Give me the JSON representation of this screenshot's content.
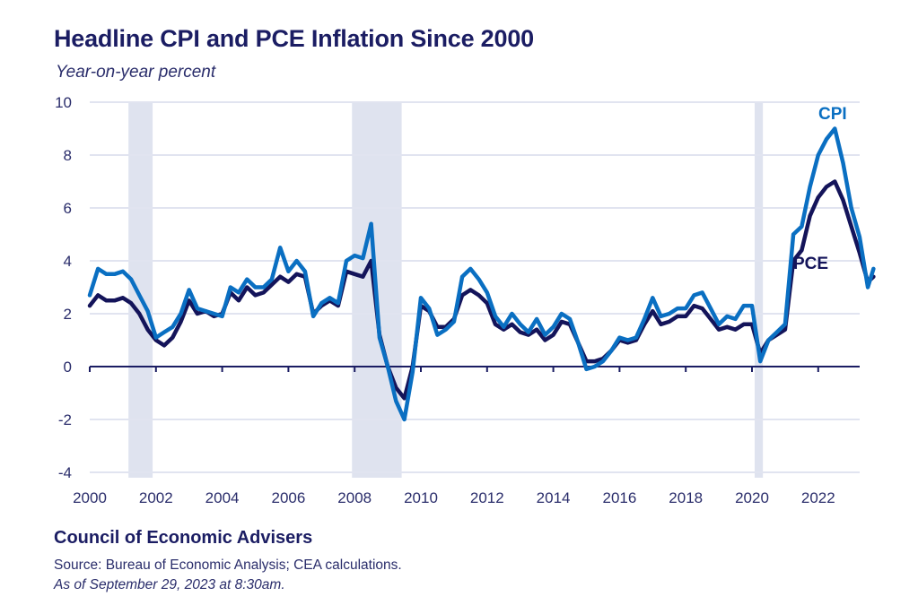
{
  "header": {
    "title": "Headline CPI and PCE Inflation Since 2000",
    "subtitle": "Year-on-year percent"
  },
  "footer": {
    "organization": "Council of Economic Advisers",
    "source": "Source: Bureau of Economic Analysis; CEA calculations.",
    "as_of": "As of September 29, 2023 at 8:30am."
  },
  "colors": {
    "cpi": "#0a6fc2",
    "pce": "#14145a",
    "recession": "#dfe3ef",
    "grid": "#e1e4f0",
    "axis": "#1b1d63",
    "tick_text": "#2a2d6b"
  },
  "chart_data": {
    "type": "line",
    "title": "Headline CPI and PCE Inflation Since 2000",
    "subtitle": "Year-on-year percent",
    "xlabel": "",
    "ylabel": "Year-on-year percent",
    "xlim": [
      2000,
      2023.75
    ],
    "ylim": [
      -4,
      10
    ],
    "yticks": [
      -4,
      -2,
      0,
      2,
      4,
      6,
      8,
      10
    ],
    "xticks": [
      2000,
      2002,
      2004,
      2006,
      2008,
      2010,
      2012,
      2014,
      2016,
      2018,
      2020,
      2022
    ],
    "grid": true,
    "legend": "inline labels (CPI top-right above peak, PCE right below)",
    "recessions": [
      {
        "start": 2001.17,
        "end": 2001.9
      },
      {
        "start": 2007.92,
        "end": 2009.42
      },
      {
        "start": 2020.08,
        "end": 2020.33
      }
    ],
    "x": [
      2000.0,
      2000.25,
      2000.5,
      2000.75,
      2001.0,
      2001.25,
      2001.5,
      2001.75,
      2002.0,
      2002.25,
      2002.5,
      2002.75,
      2003.0,
      2003.25,
      2003.5,
      2003.75,
      2004.0,
      2004.25,
      2004.5,
      2004.75,
      2005.0,
      2005.25,
      2005.5,
      2005.75,
      2006.0,
      2006.25,
      2006.5,
      2006.75,
      2007.0,
      2007.25,
      2007.5,
      2007.75,
      2008.0,
      2008.25,
      2008.5,
      2008.75,
      2009.0,
      2009.25,
      2009.5,
      2009.75,
      2010.0,
      2010.25,
      2010.5,
      2010.75,
      2011.0,
      2011.25,
      2011.5,
      2011.75,
      2012.0,
      2012.25,
      2012.5,
      2012.75,
      2013.0,
      2013.25,
      2013.5,
      2013.75,
      2014.0,
      2014.25,
      2014.5,
      2014.75,
      2015.0,
      2015.25,
      2015.5,
      2015.75,
      2016.0,
      2016.25,
      2016.5,
      2016.75,
      2017.0,
      2017.25,
      2017.5,
      2017.75,
      2018.0,
      2018.25,
      2018.5,
      2018.75,
      2019.0,
      2019.25,
      2019.5,
      2019.75,
      2020.0,
      2020.25,
      2020.5,
      2020.75,
      2021.0,
      2021.25,
      2021.5,
      2021.75,
      2022.0,
      2022.25,
      2022.5,
      2022.75,
      2023.0,
      2023.25,
      2023.5,
      2023.67
    ],
    "series": [
      {
        "name": "CPI",
        "label": "CPI",
        "values": [
          2.7,
          3.7,
          3.5,
          3.5,
          3.6,
          3.3,
          2.7,
          2.1,
          1.1,
          1.3,
          1.5,
          2.0,
          2.9,
          2.2,
          2.1,
          2.0,
          1.9,
          3.0,
          2.8,
          3.3,
          3.0,
          3.0,
          3.3,
          4.5,
          3.6,
          4.0,
          3.6,
          1.9,
          2.4,
          2.6,
          2.4,
          4.0,
          4.2,
          4.1,
          5.4,
          1.1,
          0.0,
          -1.3,
          -2.0,
          -0.2,
          2.6,
          2.2,
          1.2,
          1.4,
          1.7,
          3.4,
          3.7,
          3.3,
          2.8,
          1.9,
          1.5,
          2.0,
          1.6,
          1.3,
          1.8,
          1.2,
          1.5,
          2.0,
          1.8,
          0.9,
          -0.1,
          0.0,
          0.2,
          0.6,
          1.1,
          1.0,
          1.1,
          1.8,
          2.6,
          1.9,
          2.0,
          2.2,
          2.2,
          2.7,
          2.8,
          2.2,
          1.6,
          1.9,
          1.8,
          2.3,
          2.3,
          0.2,
          1.0,
          1.3,
          1.6,
          5.0,
          5.3,
          6.8,
          8.0,
          8.6,
          9.0,
          7.7,
          6.0,
          4.9,
          3.0,
          3.7
        ]
      },
      {
        "name": "PCE",
        "label": "PCE",
        "values": [
          2.3,
          2.7,
          2.5,
          2.5,
          2.6,
          2.4,
          2.0,
          1.4,
          1.0,
          0.8,
          1.1,
          1.7,
          2.5,
          2.0,
          2.1,
          1.9,
          2.0,
          2.8,
          2.5,
          3.0,
          2.7,
          2.8,
          3.1,
          3.4,
          3.2,
          3.5,
          3.4,
          2.0,
          2.3,
          2.5,
          2.3,
          3.6,
          3.5,
          3.4,
          4.0,
          1.2,
          0.0,
          -0.8,
          -1.2,
          0.0,
          2.3,
          2.1,
          1.5,
          1.5,
          1.8,
          2.7,
          2.9,
          2.7,
          2.4,
          1.6,
          1.4,
          1.6,
          1.3,
          1.2,
          1.4,
          1.0,
          1.2,
          1.7,
          1.6,
          0.9,
          0.2,
          0.2,
          0.3,
          0.6,
          1.0,
          0.9,
          1.0,
          1.6,
          2.1,
          1.6,
          1.7,
          1.9,
          1.9,
          2.3,
          2.2,
          1.8,
          1.4,
          1.5,
          1.4,
          1.6,
          1.6,
          0.5,
          1.0,
          1.2,
          1.4,
          4.0,
          4.4,
          5.7,
          6.4,
          6.8,
          7.0,
          6.3,
          5.3,
          4.3,
          3.2,
          3.4
        ]
      }
    ]
  }
}
